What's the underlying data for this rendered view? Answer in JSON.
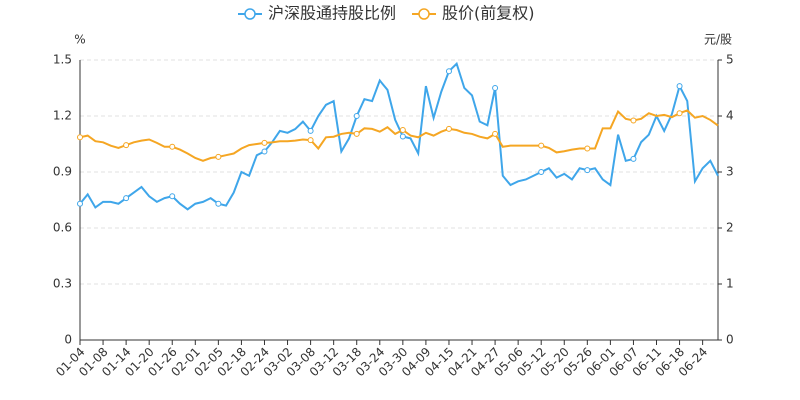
{
  "chart_data": {
    "type": "line",
    "categories": [
      "01-04",
      null,
      null,
      "01-08",
      null,
      null,
      "01-14",
      null,
      null,
      "01-20",
      null,
      null,
      "01-26",
      null,
      null,
      "02-01",
      null,
      null,
      "02-05",
      null,
      null,
      "02-18",
      null,
      null,
      "02-24",
      null,
      null,
      "03-02",
      null,
      null,
      "03-08",
      null,
      null,
      "03-12",
      null,
      null,
      "03-18",
      null,
      null,
      "03-24",
      null,
      null,
      "03-30",
      null,
      null,
      "04-09",
      null,
      null,
      "04-15",
      null,
      null,
      "04-21",
      null,
      null,
      "04-27",
      null,
      null,
      "05-06",
      null,
      null,
      "05-12",
      null,
      null,
      "05-20",
      null,
      null,
      "05-26",
      null,
      null,
      "06-01",
      null,
      null,
      "06-07",
      null,
      null,
      "06-11",
      null,
      null,
      "06-18",
      null,
      null,
      "06-24",
      null,
      null
    ],
    "series": [
      {
        "name": "沪深股通持股比例",
        "color": "#3fa6ea",
        "axis": "y",
        "values": [
          0.73,
          0.78,
          0.71,
          0.74,
          0.74,
          0.73,
          0.76,
          0.79,
          0.82,
          0.77,
          0.74,
          0.76,
          0.77,
          0.73,
          0.7,
          0.73,
          0.74,
          0.76,
          0.73,
          0.72,
          0.79,
          0.9,
          0.88,
          0.99,
          1.01,
          1.06,
          1.12,
          1.11,
          1.13,
          1.17,
          1.12,
          1.2,
          1.26,
          1.28,
          1.01,
          1.08,
          1.2,
          1.29,
          1.28,
          1.39,
          1.34,
          1.18,
          1.09,
          1.08,
          1.0,
          1.36,
          1.19,
          1.33,
          1.44,
          1.48,
          1.35,
          1.31,
          1.17,
          1.15,
          1.35,
          0.88,
          0.83,
          0.85,
          0.86,
          0.88,
          0.9,
          0.92,
          0.87,
          0.89,
          0.86,
          0.92,
          0.91,
          0.92,
          0.86,
          0.83,
          1.1,
          0.96,
          0.97,
          1.06,
          1.1,
          1.2,
          1.12,
          1.21,
          1.36,
          1.28,
          0.85,
          0.92,
          0.96,
          0.88
        ]
      },
      {
        "name": "股价(前复权)",
        "color": "#f5a623",
        "axis": "y2",
        "values": [
          3.62,
          3.65,
          3.55,
          3.53,
          3.47,
          3.43,
          3.48,
          3.53,
          3.56,
          3.58,
          3.52,
          3.45,
          3.45,
          3.4,
          3.33,
          3.25,
          3.2,
          3.25,
          3.27,
          3.3,
          3.33,
          3.42,
          3.48,
          3.5,
          3.52,
          3.53,
          3.55,
          3.55,
          3.56,
          3.58,
          3.57,
          3.42,
          3.62,
          3.63,
          3.68,
          3.7,
          3.68,
          3.78,
          3.77,
          3.72,
          3.8,
          3.68,
          3.75,
          3.65,
          3.62,
          3.7,
          3.65,
          3.72,
          3.77,
          3.75,
          3.7,
          3.68,
          3.63,
          3.6,
          3.68,
          3.45,
          3.47,
          3.47,
          3.47,
          3.47,
          3.47,
          3.43,
          3.35,
          3.37,
          3.4,
          3.42,
          3.42,
          3.42,
          3.78,
          3.78,
          4.08,
          3.95,
          3.92,
          3.95,
          4.05,
          4.0,
          4.02,
          3.98,
          4.05,
          4.1,
          3.97,
          4.0,
          3.93,
          3.83
        ]
      }
    ],
    "y_label": "%",
    "y2_label": "元/股",
    "ylim": [
      0,
      1.5
    ],
    "yticks": [
      0,
      0.3,
      0.6,
      0.9,
      1.2,
      1.5
    ],
    "y2lim": [
      0,
      5
    ],
    "y2ticks": [
      0,
      1,
      2,
      3,
      4,
      5
    ],
    "grid": true
  }
}
